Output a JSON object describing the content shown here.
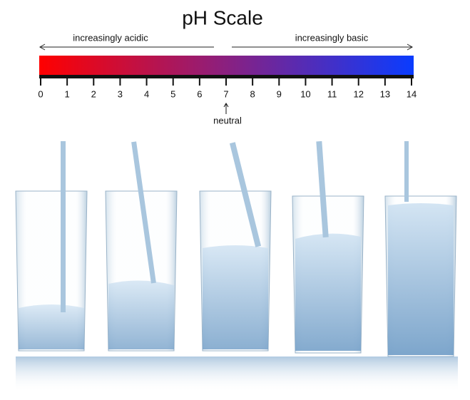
{
  "title": "pH Scale",
  "scale": {
    "left_label": "increasingly acidic",
    "right_label": "increasingly basic",
    "ticks": [
      0,
      1,
      2,
      3,
      4,
      5,
      6,
      7,
      8,
      9,
      10,
      11,
      12,
      13,
      14
    ],
    "neutral_label": "neutral",
    "neutral_value": 7
  }
}
